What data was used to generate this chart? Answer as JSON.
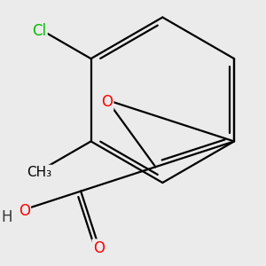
{
  "bg_color": "#ebebeb",
  "bond_color": "#000000",
  "bond_width": 1.6,
  "atom_colors": {
    "O": "#ff0000",
    "Cl": "#00bb00",
    "C": "#000000",
    "H": "#333333"
  },
  "font_size": 12,
  "fig_size": [
    3.0,
    3.0
  ],
  "dpi": 100,
  "scale": 1.0
}
